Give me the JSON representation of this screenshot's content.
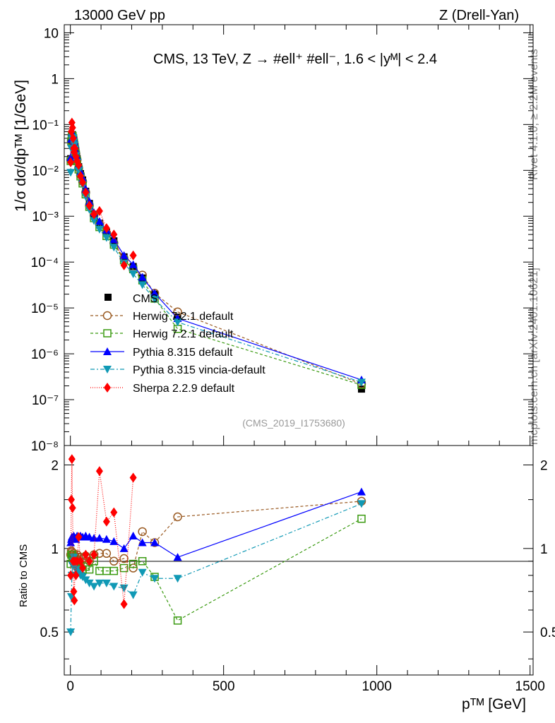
{
  "header": {
    "left": "13000 GeV pp",
    "right": "Z (Drell-Yan)"
  },
  "side_labels": {
    "rivet": "Rivet 4.1.0, ≥ 2.2M events",
    "mcplots": "mcplots.cern.ch [arXiv:2401.10621]"
  },
  "colors": {
    "CMS": "#000000",
    "Herwig 7.2.1 default": "#9a5a22",
    "Herwig 7.2.1 default (green)": "#3a9a10",
    "Pythia 8.315 default": "#0000ff",
    "Pythia 8.315 vincia-default": "#1099b5",
    "Sherpa 2.2.9 default": "#ff0000"
  },
  "chart_data": [
    {
      "type": "scatter",
      "panel": "main",
      "title": "CMS, 13 TeV, Z →  #ell⁺ #ell⁻, 1.6 < |yᴹ| < 2.4",
      "ylabel": "1/σ dσ/dpᵀᴹ [1/GeV]",
      "xlabel": "",
      "analysis_label": "(CMS_2019_I1753680)",
      "xlim": [
        -20,
        1510
      ],
      "ylim": [
        1e-08,
        15
      ],
      "yscale": "log",
      "y_tick_labels": [
        "10⁻⁸",
        "10⁻⁷",
        "10⁻⁶",
        "10⁻⁵",
        "10⁻⁴",
        "10⁻³",
        "10⁻²",
        "10⁻¹",
        "1",
        "10"
      ],
      "y_tick_values": [
        1e-08,
        1e-07,
        1e-06,
        1e-05,
        0.0001,
        0.001,
        0.01,
        0.1,
        1,
        10
      ],
      "legend_position": "center-left",
      "series": [
        {
          "name": "CMS",
          "marker": "square",
          "line": "none",
          "x": [
            1,
            3,
            5,
            7,
            9,
            11,
            13,
            15,
            18,
            22,
            27,
            33,
            40,
            50,
            62,
            77,
            95,
            118,
            142,
            175,
            205,
            235,
            275,
            350,
            950
          ],
          "y": [
            0.018,
            0.045,
            0.06,
            0.06,
            0.055,
            0.045,
            0.04,
            0.033,
            0.025,
            0.018,
            0.012,
            0.0085,
            0.0062,
            0.0035,
            0.0019,
            0.0011,
            0.0007,
            0.00045,
            0.00029,
            0.00013,
            8e-05,
            4.5e-05,
            2e-05,
            6.3e-06,
            1.7e-07
          ]
        },
        {
          "name": "Herwig 7.2.1 default",
          "marker": "open-circle",
          "line": "dashed",
          "x": [
            1,
            3,
            5,
            7,
            9,
            11,
            13,
            15,
            18,
            22,
            27,
            33,
            40,
            50,
            62,
            77,
            95,
            118,
            142,
            175,
            205,
            235,
            275,
            350,
            950
          ],
          "y": [
            0.017,
            0.044,
            0.058,
            0.057,
            0.052,
            0.043,
            0.037,
            0.031,
            0.023,
            0.017,
            0.0112,
            0.0079,
            0.0057,
            0.0033,
            0.0017,
            0.00105,
            0.00067,
            0.00043,
            0.00026,
            0.00012,
            6.8e-05,
            5.2e-05,
            2.1e-05,
            8.2e-06,
            2.2e-07
          ]
        },
        {
          "name": "Herwig 7.2.1 default",
          "marker": "open-square",
          "line": "dashed",
          "x": [
            1,
            3,
            5,
            7,
            9,
            11,
            13,
            15,
            18,
            22,
            27,
            33,
            40,
            50,
            62,
            77,
            95,
            118,
            142,
            175,
            205,
            235,
            275,
            350,
            950
          ],
          "y": [
            0.016,
            0.043,
            0.057,
            0.056,
            0.05,
            0.041,
            0.035,
            0.029,
            0.022,
            0.016,
            0.0105,
            0.0074,
            0.0052,
            0.003,
            0.0016,
            0.00091,
            0.00058,
            0.00037,
            0.00024,
            0.00011,
            7e-05,
            4e-05,
            1.6e-05,
            3.5e-06,
            2.1e-07
          ]
        },
        {
          "name": "Pythia 8.315 default",
          "marker": "triangle-up",
          "line": "solid",
          "x": [
            1,
            3,
            5,
            7,
            9,
            11,
            13,
            15,
            18,
            22,
            27,
            33,
            40,
            50,
            62,
            77,
            95,
            118,
            142,
            175,
            205,
            235,
            275,
            350,
            950
          ],
          "y": [
            0.019,
            0.048,
            0.066,
            0.065,
            0.06,
            0.05,
            0.044,
            0.036,
            0.027,
            0.02,
            0.0133,
            0.0094,
            0.0068,
            0.0039,
            0.0021,
            0.0012,
            0.00077,
            0.0005,
            0.00031,
            0.00014,
            8.8e-05,
            4.7e-05,
            2.1e-05,
            5.9e-06,
            2.7e-07
          ]
        },
        {
          "name": "Pythia 8.315 vincia-default",
          "marker": "triangle-down",
          "line": "dashdot",
          "x": [
            1,
            3,
            5,
            7,
            9,
            11,
            13,
            15,
            18,
            22,
            27,
            33,
            40,
            50,
            62,
            77,
            95,
            118,
            142,
            175,
            205,
            235,
            275,
            350,
            950
          ],
          "y": [
            0.009,
            0.03,
            0.048,
            0.052,
            0.05,
            0.042,
            0.036,
            0.029,
            0.021,
            0.015,
            0.0099,
            0.0068,
            0.0049,
            0.0027,
            0.0014,
            0.0008,
            0.00052,
            0.00034,
            0.00021,
            9.5e-05,
            5.5e-05,
            3.2e-05,
            1.55e-05,
            4.9e-06,
            2.4e-07
          ]
        },
        {
          "name": "Sherpa 2.2.9 default",
          "marker": "diamond",
          "line": "dotted",
          "x": [
            1,
            3,
            5,
            7,
            9,
            11,
            13,
            15,
            18,
            22,
            27,
            33,
            40,
            50,
            62,
            77,
            95,
            118,
            142,
            175,
            205
          ],
          "y": [
            0.015,
            0.07,
            0.11,
            0.085,
            0.05,
            0.03,
            0.025,
            0.03,
            0.02,
            0.016,
            0.013,
            0.0075,
            0.0055,
            0.0033,
            0.0017,
            0.0011,
            0.0013,
            0.00055,
            0.0004,
            8.5e-05,
            0.00014
          ]
        }
      ]
    },
    {
      "type": "scatter",
      "panel": "ratio",
      "ylabel": "Ratio to CMS",
      "xlabel": "pᵀᴹ [GeV]",
      "xlim": [
        -20,
        1510
      ],
      "ylim": [
        0.35,
        2.35
      ],
      "yscale": "log",
      "reference_line": 1,
      "y_tick_values": [
        0.5,
        1,
        2
      ],
      "y_tick_labels": [
        "0.5",
        "1",
        "2"
      ],
      "x_tick_values": [
        0,
        500,
        1000,
        1500
      ],
      "x_tick_labels": [
        "0",
        "500",
        "1000",
        "1500"
      ],
      "series": [
        {
          "name": "Herwig 7.2.1 default",
          "marker": "open-circle",
          "line": "dashed",
          "x": [
            1,
            3,
            5,
            7,
            9,
            11,
            13,
            15,
            18,
            22,
            27,
            33,
            40,
            50,
            62,
            77,
            95,
            118,
            142,
            175,
            205,
            235,
            275,
            350,
            950
          ],
          "y": [
            0.95,
            0.98,
            0.97,
            0.95,
            0.95,
            0.96,
            0.93,
            0.94,
            0.92,
            0.95,
            0.93,
            0.93,
            0.92,
            0.94,
            0.9,
            0.95,
            0.96,
            0.96,
            0.9,
            0.92,
            0.85,
            1.15,
            1.05,
            1.3,
            1.48
          ]
        },
        {
          "name": "Herwig 7.2.1 default",
          "marker": "open-square",
          "line": "dashed",
          "x": [
            1,
            3,
            5,
            7,
            9,
            11,
            13,
            15,
            18,
            22,
            27,
            33,
            40,
            50,
            62,
            77,
            95,
            118,
            142,
            175,
            205,
            235,
            275,
            350,
            950
          ],
          "y": [
            0.88,
            0.95,
            0.95,
            0.93,
            0.91,
            0.92,
            0.88,
            0.88,
            0.88,
            0.88,
            0.88,
            0.87,
            0.84,
            0.86,
            0.84,
            0.9,
            0.83,
            0.83,
            0.83,
            0.85,
            0.88,
            0.9,
            0.79,
            0.55,
            1.28
          ]
        },
        {
          "name": "Pythia 8.315 default",
          "marker": "triangle-up",
          "line": "solid",
          "x": [
            1,
            3,
            5,
            7,
            9,
            11,
            13,
            15,
            18,
            22,
            27,
            33,
            40,
            50,
            62,
            77,
            95,
            118,
            142,
            175,
            205,
            235,
            275,
            350,
            950
          ],
          "y": [
            1.05,
            1.08,
            1.1,
            1.09,
            1.1,
            1.11,
            1.1,
            1.09,
            1.08,
            1.11,
            1.1,
            1.11,
            1.1,
            1.11,
            1.1,
            1.09,
            1.09,
            1.08,
            1.06,
            1.0,
            1.11,
            1.05,
            1.05,
            0.93,
            1.6
          ]
        },
        {
          "name": "Pythia 8.315 vincia-default",
          "marker": "triangle-down",
          "line": "dashdot",
          "x": [
            1,
            3,
            5,
            7,
            9,
            11,
            13,
            15,
            18,
            22,
            27,
            33,
            40,
            50,
            62,
            77,
            95,
            118,
            142,
            175,
            205,
            235,
            275,
            350,
            950
          ],
          "y": [
            0.5,
            0.67,
            0.8,
            0.87,
            0.9,
            0.93,
            0.9,
            0.88,
            0.84,
            0.83,
            0.82,
            0.8,
            0.79,
            0.77,
            0.75,
            0.73,
            0.75,
            0.75,
            0.73,
            0.72,
            0.68,
            0.82,
            0.78,
            0.78,
            1.45
          ]
        },
        {
          "name": "Sherpa 2.2.9 default",
          "marker": "diamond",
          "line": "dotted",
          "x": [
            1,
            3,
            5,
            7,
            9,
            11,
            13,
            15,
            18,
            22,
            27,
            33,
            40,
            50,
            62,
            77,
            95,
            118,
            142,
            175,
            205
          ],
          "y": [
            0.8,
            1.5,
            2.1,
            1.4,
            0.9,
            0.7,
            0.65,
            0.9,
            0.8,
            0.9,
            1.1,
            0.9,
            0.85,
            0.95,
            0.9,
            0.95,
            1.9,
            1.25,
            1.35,
            0.63,
            1.8
          ]
        }
      ]
    }
  ],
  "legend": [
    {
      "label": "CMS",
      "marker": "square"
    },
    {
      "label": "Herwig 7.2.1 default",
      "marker": "open-circle"
    },
    {
      "label": "Herwig 7.2.1 default",
      "marker": "open-square"
    },
    {
      "label": "Pythia 8.315 default",
      "marker": "triangle-up"
    },
    {
      "label": "Pythia 8.315 vincia-default",
      "marker": "triangle-down"
    },
    {
      "label": "Sherpa 2.2.9 default",
      "marker": "diamond"
    }
  ]
}
